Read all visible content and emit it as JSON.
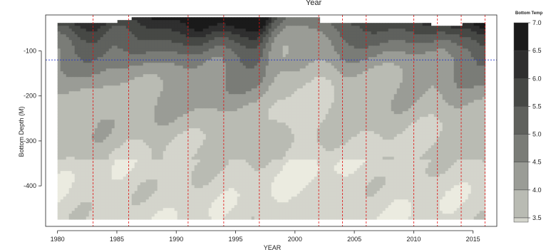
{
  "chart_data": {
    "type": "heatmap",
    "title": "Year",
    "xlabel": "YEAR",
    "ylabel": "Bottom Depth (M)",
    "xlim": [
      1979,
      2017
    ],
    "ylim": [
      -490,
      -20
    ],
    "x_ticks": [
      "1980",
      "1985",
      "1990",
      "1995",
      "2000",
      "2005",
      "2010",
      "2015"
    ],
    "x_tick_values": [
      1980,
      1985,
      1990,
      1995,
      2000,
      2005,
      2010,
      2015
    ],
    "y_ticks": [
      "-100",
      "-200",
      "-300",
      "-400"
    ],
    "y_tick_values": [
      -100,
      -200,
      -300,
      -400
    ],
    "vertical_reference_lines": [
      1983,
      1986,
      1991,
      1994,
      1997,
      2002,
      2004,
      2006,
      2010,
      2012,
      2014,
      2016
    ],
    "vertical_line_color": "#e01010",
    "horizontal_reference_line": -120,
    "horizontal_line_color": "#2233cc",
    "data_x_range": [
      1980,
      2016
    ],
    "data_y_range": [
      -470,
      -25
    ],
    "legend": {
      "title": "Bottom Temp",
      "labels": [
        "7.0",
        "6.5",
        "6.0",
        "5.5",
        "5.0",
        "4.5",
        "4.0",
        "3.5"
      ],
      "values": [
        7.0,
        6.5,
        6.0,
        5.5,
        5.0,
        4.5,
        4.0,
        3.5
      ],
      "colors": [
        "#1a1a1a",
        "#2f2f2f",
        "#464845",
        "#5f615d",
        "#7a7c77",
        "#9a9c96",
        "#b9bbb3",
        "#d4d5cc",
        "#ebebe0"
      ]
    }
  }
}
